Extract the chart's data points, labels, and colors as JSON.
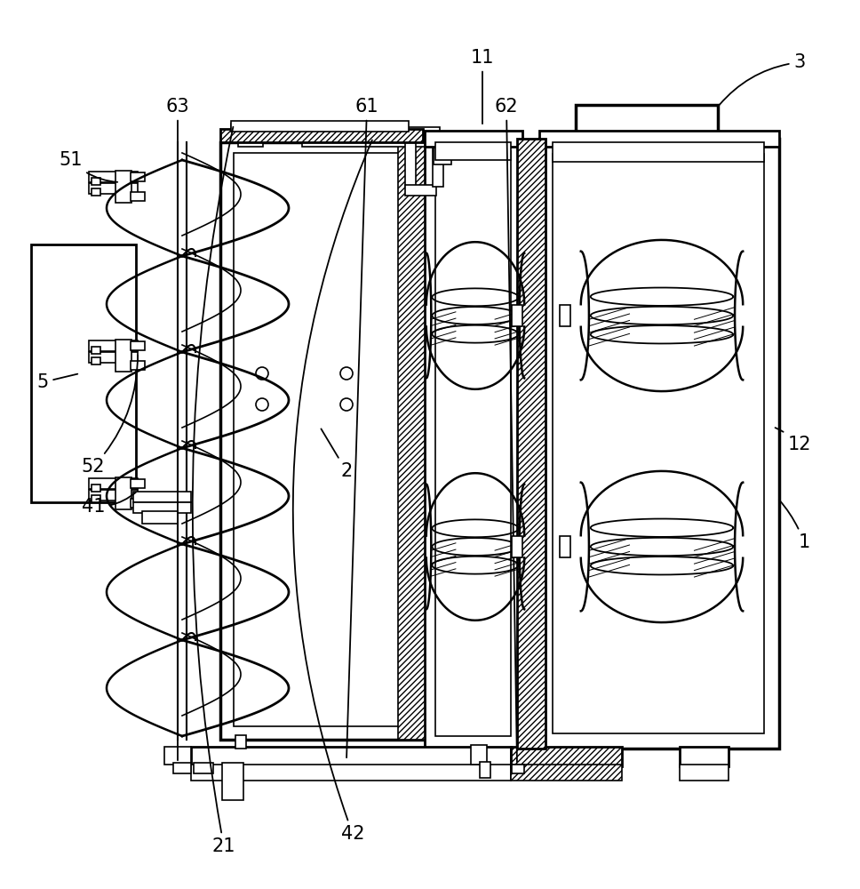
{
  "bg_color": "#ffffff",
  "line_color": "#000000",
  "lw_main": 2.0,
  "lw_thin": 1.2,
  "lw_thick": 2.5,
  "label_fs": 15
}
